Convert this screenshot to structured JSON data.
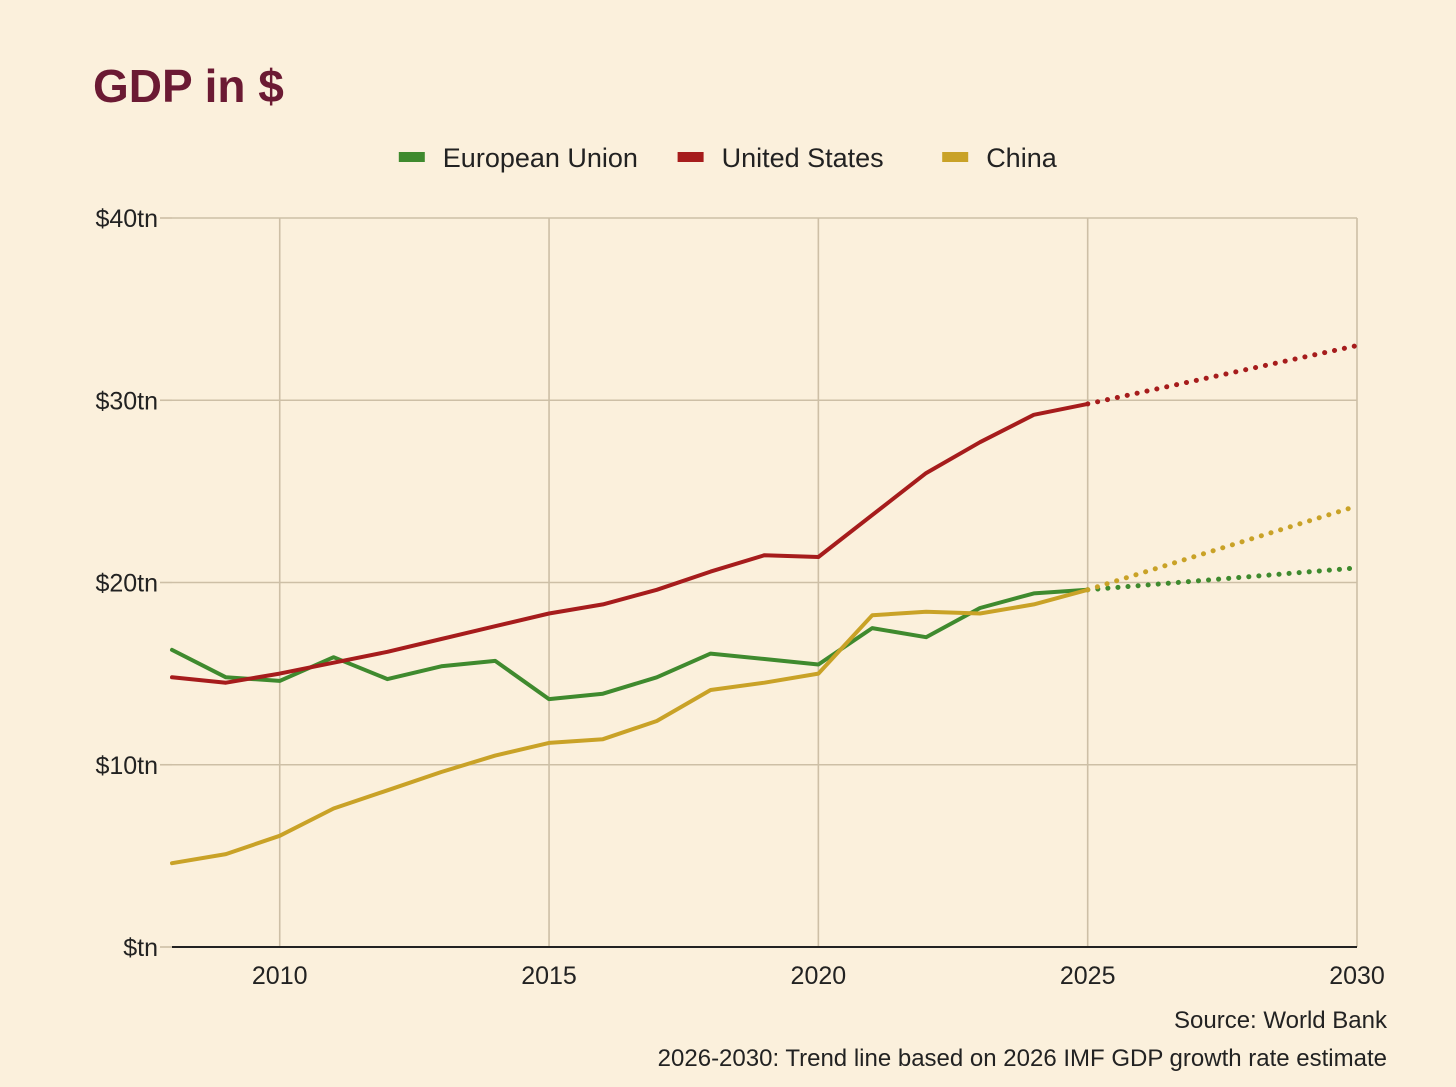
{
  "chart_data": {
    "type": "line",
    "title": "GDP in $",
    "xlabel": "",
    "ylabel": "",
    "xlim": [
      2008,
      2030
    ],
    "ylim": [
      0,
      40
    ],
    "x_ticks": [
      2010,
      2015,
      2020,
      2025,
      2030
    ],
    "y_ticks": [
      {
        "value": 0,
        "label": "$tn"
      },
      {
        "value": 10,
        "label": "$10tn"
      },
      {
        "value": 20,
        "label": "$20tn"
      },
      {
        "value": 30,
        "label": "$30tn"
      },
      {
        "value": 40,
        "label": "$40tn"
      }
    ],
    "grid": true,
    "legend_position": "top-center",
    "series": [
      {
        "name": "European Union",
        "color": "#3f8a2e",
        "x": [
          2008,
          2009,
          2010,
          2011,
          2012,
          2013,
          2014,
          2015,
          2016,
          2017,
          2018,
          2019,
          2020,
          2021,
          2022,
          2023,
          2024,
          2025
        ],
        "values": [
          16.3,
          14.8,
          14.6,
          15.9,
          14.7,
          15.4,
          15.7,
          13.6,
          13.9,
          14.8,
          16.1,
          15.8,
          15.5,
          17.5,
          17.0,
          18.6,
          19.4,
          19.6
        ],
        "forecast_x": [
          2025,
          2030
        ],
        "forecast_values": [
          19.6,
          20.8
        ]
      },
      {
        "name": "United States",
        "color": "#a61c1c",
        "x": [
          2008,
          2009,
          2010,
          2011,
          2012,
          2013,
          2014,
          2015,
          2016,
          2017,
          2018,
          2019,
          2020,
          2021,
          2022,
          2023,
          2024,
          2025
        ],
        "values": [
          14.8,
          14.5,
          15.0,
          15.6,
          16.2,
          16.9,
          17.6,
          18.3,
          18.8,
          19.6,
          20.6,
          21.5,
          21.4,
          23.7,
          26.0,
          27.7,
          29.2,
          29.8
        ],
        "forecast_x": [
          2025,
          2030
        ],
        "forecast_values": [
          29.8,
          33.0
        ]
      },
      {
        "name": "China",
        "color": "#c9a227",
        "x": [
          2008,
          2009,
          2010,
          2011,
          2012,
          2013,
          2014,
          2015,
          2016,
          2017,
          2018,
          2019,
          2020,
          2021,
          2022,
          2023,
          2024,
          2025
        ],
        "values": [
          4.6,
          5.1,
          6.1,
          7.6,
          8.6,
          9.6,
          10.5,
          11.2,
          11.4,
          12.4,
          14.1,
          14.5,
          15.0,
          18.2,
          18.4,
          18.3,
          18.8,
          19.6
        ],
        "forecast_x": [
          2025,
          2030
        ],
        "forecast_values": [
          19.6,
          24.2
        ]
      }
    ],
    "annotations": [
      "Source: World Bank",
      "2026-2030: Trend line based on 2026 IMF GDP growth rate estimate"
    ]
  }
}
